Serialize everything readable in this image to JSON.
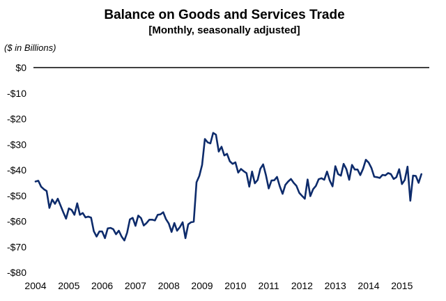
{
  "chart_data": {
    "type": "line",
    "title": "Balance on Goods and Services Trade",
    "subtitle": "[Monthly, seasonally adjusted]",
    "unit_label": "($ in Billions)",
    "xlabel": "",
    "ylabel": "",
    "ylim": [
      -80,
      0
    ],
    "xlim": [
      2004,
      2015.67
    ],
    "grid": false,
    "legend": "none",
    "y_ticks": [
      0,
      -10,
      -20,
      -30,
      -40,
      -50,
      -60,
      -70,
      -80
    ],
    "y_tick_labels": [
      "$0",
      "-$10",
      "-$20",
      "-$30",
      "-$40",
      "-$50",
      "-$60",
      "-$70",
      "-$80"
    ],
    "x_ticks": [
      2004,
      2005,
      2006,
      2007,
      2008,
      2009,
      2010,
      2011,
      2012,
      2013,
      2014,
      2015
    ],
    "x_tick_labels": [
      "2004",
      "2005",
      "2006",
      "2007",
      "2008",
      "2009",
      "2010",
      "2011",
      "2012",
      "2013",
      "2014",
      "2015"
    ],
    "colors": {
      "line": "#0d2b6b",
      "zero_line": "#000000"
    },
    "series": [
      {
        "values": [
          -44.5,
          -44.2,
          -46.5,
          -47.5,
          -48.2,
          -54.8,
          -51.5,
          -53.2,
          -51.2,
          -53.8,
          -56.5,
          -59.0,
          -55.0,
          -55.6,
          -57.5,
          -53.0,
          -57.5,
          -56.8,
          -58.5,
          -58.2,
          -58.6,
          -63.9,
          -66.0,
          -64.0,
          -64.0,
          -66.6,
          -62.8,
          -62.6,
          -63.1,
          -65.1,
          -63.7,
          -66.0,
          -67.5,
          -64.5,
          -59.3,
          -58.7,
          -61.8,
          -57.8,
          -58.8,
          -61.7,
          -60.7,
          -59.4,
          -59.4,
          -59.7,
          -57.5,
          -57.3,
          -56.5,
          -59.2,
          -60.9,
          -64.2,
          -60.7,
          -63.7,
          -62.3,
          -60.4,
          -66.6,
          -61.2,
          -60.4,
          -60.2,
          -44.8,
          -42.3,
          -38.0,
          -27.9,
          -29.2,
          -29.6,
          -25.5,
          -26.2,
          -32.8,
          -30.9,
          -34.3,
          -33.7,
          -36.6,
          -37.6,
          -37.0,
          -41.0,
          -39.6,
          -40.5,
          -41.2,
          -46.5,
          -40.6,
          -45.2,
          -43.9,
          -39.5,
          -37.8,
          -42.0,
          -47.2,
          -44.1,
          -44.0,
          -42.7,
          -46.4,
          -49.3,
          -45.8,
          -44.5,
          -43.5,
          -45.0,
          -46.2,
          -48.9,
          -50.1,
          -51.2,
          -43.7,
          -50.2,
          -47.5,
          -46.2,
          -43.6,
          -43.2,
          -43.8,
          -40.6,
          -44.1,
          -46.4,
          -38.5,
          -41.6,
          -42.2,
          -37.6,
          -39.7,
          -43.8,
          -38.0,
          -39.8,
          -39.8,
          -42.0,
          -39.5,
          -36.0,
          -37.1,
          -39.2,
          -42.6,
          -42.8,
          -43.1,
          -41.9,
          -42.1,
          -41.2,
          -41.6,
          -43.5,
          -42.8,
          -39.7,
          -45.5,
          -43.9,
          -38.7,
          -52.0,
          -42.2,
          -42.3,
          -45.0,
          -41.6
        ]
      }
    ]
  }
}
